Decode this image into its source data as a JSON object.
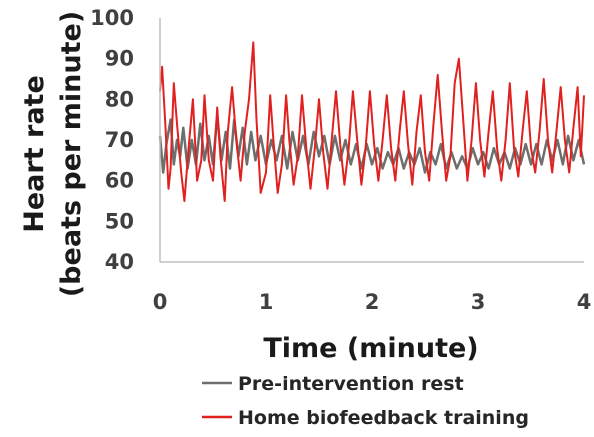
{
  "chart_data": {
    "type": "line",
    "ylabel_lines": [
      "Heart rate",
      "(beats per minute)"
    ],
    "xlabel": "Time (minute)",
    "xlim": [
      0,
      4
    ],
    "ylim": [
      40,
      100
    ],
    "x_ticks": [
      0,
      1,
      2,
      3,
      4
    ],
    "y_ticks": [
      40,
      50,
      60,
      70,
      80,
      90,
      100
    ],
    "grid": false,
    "legend_position": "bottom",
    "series": [
      {
        "name": "Pre-intervention rest",
        "color": "#6e6e6e",
        "points": [
          [
            0.0,
            71
          ],
          [
            0.03,
            62
          ],
          [
            0.06,
            69
          ],
          [
            0.1,
            75
          ],
          [
            0.13,
            64
          ],
          [
            0.16,
            70
          ],
          [
            0.19,
            66
          ],
          [
            0.22,
            73
          ],
          [
            0.26,
            63
          ],
          [
            0.3,
            70
          ],
          [
            0.34,
            64
          ],
          [
            0.38,
            74
          ],
          [
            0.42,
            65
          ],
          [
            0.46,
            71
          ],
          [
            0.5,
            64
          ],
          [
            0.54,
            76
          ],
          [
            0.58,
            65
          ],
          [
            0.62,
            72
          ],
          [
            0.66,
            63
          ],
          [
            0.7,
            75
          ],
          [
            0.74,
            66
          ],
          [
            0.78,
            73
          ],
          [
            0.82,
            64
          ],
          [
            0.86,
            72
          ],
          [
            0.9,
            65
          ],
          [
            0.95,
            71
          ],
          [
            1.0,
            64
          ],
          [
            1.05,
            70
          ],
          [
            1.1,
            65
          ],
          [
            1.15,
            71
          ],
          [
            1.2,
            63
          ],
          [
            1.25,
            72
          ],
          [
            1.3,
            65
          ],
          [
            1.35,
            71
          ],
          [
            1.4,
            64
          ],
          [
            1.45,
            72
          ],
          [
            1.5,
            66
          ],
          [
            1.55,
            71
          ],
          [
            1.6,
            64
          ],
          [
            1.65,
            71
          ],
          [
            1.7,
            65
          ],
          [
            1.75,
            70
          ],
          [
            1.8,
            64
          ],
          [
            1.85,
            69
          ],
          [
            1.9,
            63
          ],
          [
            1.95,
            69
          ],
          [
            2.0,
            64
          ],
          [
            2.05,
            68
          ],
          [
            2.1,
            63
          ],
          [
            2.15,
            67
          ],
          [
            2.2,
            64
          ],
          [
            2.25,
            68
          ],
          [
            2.3,
            63
          ],
          [
            2.35,
            67
          ],
          [
            2.4,
            64
          ],
          [
            2.45,
            68
          ],
          [
            2.5,
            62
          ],
          [
            2.55,
            67
          ],
          [
            2.6,
            64
          ],
          [
            2.65,
            69
          ],
          [
            2.7,
            63
          ],
          [
            2.75,
            67
          ],
          [
            2.8,
            63
          ],
          [
            2.85,
            66
          ],
          [
            2.9,
            63
          ],
          [
            2.95,
            68
          ],
          [
            3.0,
            64
          ],
          [
            3.05,
            67
          ],
          [
            3.1,
            63
          ],
          [
            3.15,
            68
          ],
          [
            3.2,
            64
          ],
          [
            3.25,
            67
          ],
          [
            3.3,
            63
          ],
          [
            3.35,
            68
          ],
          [
            3.4,
            64
          ],
          [
            3.45,
            69
          ],
          [
            3.5,
            64
          ],
          [
            3.55,
            69
          ],
          [
            3.6,
            64
          ],
          [
            3.65,
            70
          ],
          [
            3.7,
            65
          ],
          [
            3.75,
            70
          ],
          [
            3.8,
            64
          ],
          [
            3.85,
            71
          ],
          [
            3.9,
            65
          ],
          [
            3.95,
            70
          ],
          [
            4.0,
            64
          ]
        ]
      },
      {
        "name": "Home biofeedback training",
        "color": "#e0211f",
        "points": [
          [
            0.0,
            82
          ],
          [
            0.02,
            88
          ],
          [
            0.05,
            74
          ],
          [
            0.08,
            58
          ],
          [
            0.1,
            63
          ],
          [
            0.13,
            84
          ],
          [
            0.16,
            74
          ],
          [
            0.2,
            62
          ],
          [
            0.23,
            55
          ],
          [
            0.27,
            68
          ],
          [
            0.31,
            80
          ],
          [
            0.35,
            60
          ],
          [
            0.39,
            65
          ],
          [
            0.42,
            81
          ],
          [
            0.46,
            65
          ],
          [
            0.5,
            60
          ],
          [
            0.54,
            78
          ],
          [
            0.57,
            66
          ],
          [
            0.61,
            55
          ],
          [
            0.64,
            72
          ],
          [
            0.68,
            83
          ],
          [
            0.72,
            70
          ],
          [
            0.76,
            60
          ],
          [
            0.8,
            72
          ],
          [
            0.84,
            80
          ],
          [
            0.88,
            94
          ],
          [
            0.91,
            75
          ],
          [
            0.95,
            57
          ],
          [
            1.0,
            62
          ],
          [
            1.04,
            81
          ],
          [
            1.07,
            70
          ],
          [
            1.11,
            57
          ],
          [
            1.15,
            64
          ],
          [
            1.19,
            81
          ],
          [
            1.22,
            70
          ],
          [
            1.26,
            59
          ],
          [
            1.3,
            66
          ],
          [
            1.34,
            81
          ],
          [
            1.38,
            68
          ],
          [
            1.42,
            58
          ],
          [
            1.46,
            68
          ],
          [
            1.5,
            80
          ],
          [
            1.54,
            67
          ],
          [
            1.58,
            58
          ],
          [
            1.62,
            70
          ],
          [
            1.66,
            82
          ],
          [
            1.7,
            69
          ],
          [
            1.74,
            59
          ],
          [
            1.78,
            68
          ],
          [
            1.82,
            82
          ],
          [
            1.86,
            70
          ],
          [
            1.9,
            59
          ],
          [
            1.94,
            68
          ],
          [
            1.98,
            82
          ],
          [
            2.02,
            69
          ],
          [
            2.06,
            60
          ],
          [
            2.1,
            70
          ],
          [
            2.14,
            81
          ],
          [
            2.18,
            68
          ],
          [
            2.22,
            60
          ],
          [
            2.26,
            72
          ],
          [
            2.3,
            82
          ],
          [
            2.34,
            69
          ],
          [
            2.38,
            59
          ],
          [
            2.42,
            72
          ],
          [
            2.46,
            81
          ],
          [
            2.5,
            67
          ],
          [
            2.54,
            60
          ],
          [
            2.58,
            74
          ],
          [
            2.62,
            86
          ],
          [
            2.66,
            72
          ],
          [
            2.7,
            60
          ],
          [
            2.74,
            66
          ],
          [
            2.78,
            84
          ],
          [
            2.82,
            90
          ],
          [
            2.86,
            75
          ],
          [
            2.9,
            60
          ],
          [
            2.94,
            70
          ],
          [
            2.98,
            84
          ],
          [
            3.02,
            70
          ],
          [
            3.06,
            61
          ],
          [
            3.1,
            72
          ],
          [
            3.14,
            82
          ],
          [
            3.18,
            68
          ],
          [
            3.22,
            60
          ],
          [
            3.26,
            70
          ],
          [
            3.3,
            84
          ],
          [
            3.34,
            68
          ],
          [
            3.38,
            61
          ],
          [
            3.42,
            72
          ],
          [
            3.46,
            82
          ],
          [
            3.5,
            68
          ],
          [
            3.54,
            62
          ],
          [
            3.58,
            72
          ],
          [
            3.62,
            85
          ],
          [
            3.66,
            70
          ],
          [
            3.7,
            62
          ],
          [
            3.74,
            72
          ],
          [
            3.78,
            83
          ],
          [
            3.82,
            70
          ],
          [
            3.86,
            62
          ],
          [
            3.9,
            73
          ],
          [
            3.94,
            83
          ],
          [
            3.97,
            66
          ],
          [
            4.0,
            81
          ]
        ]
      }
    ]
  }
}
